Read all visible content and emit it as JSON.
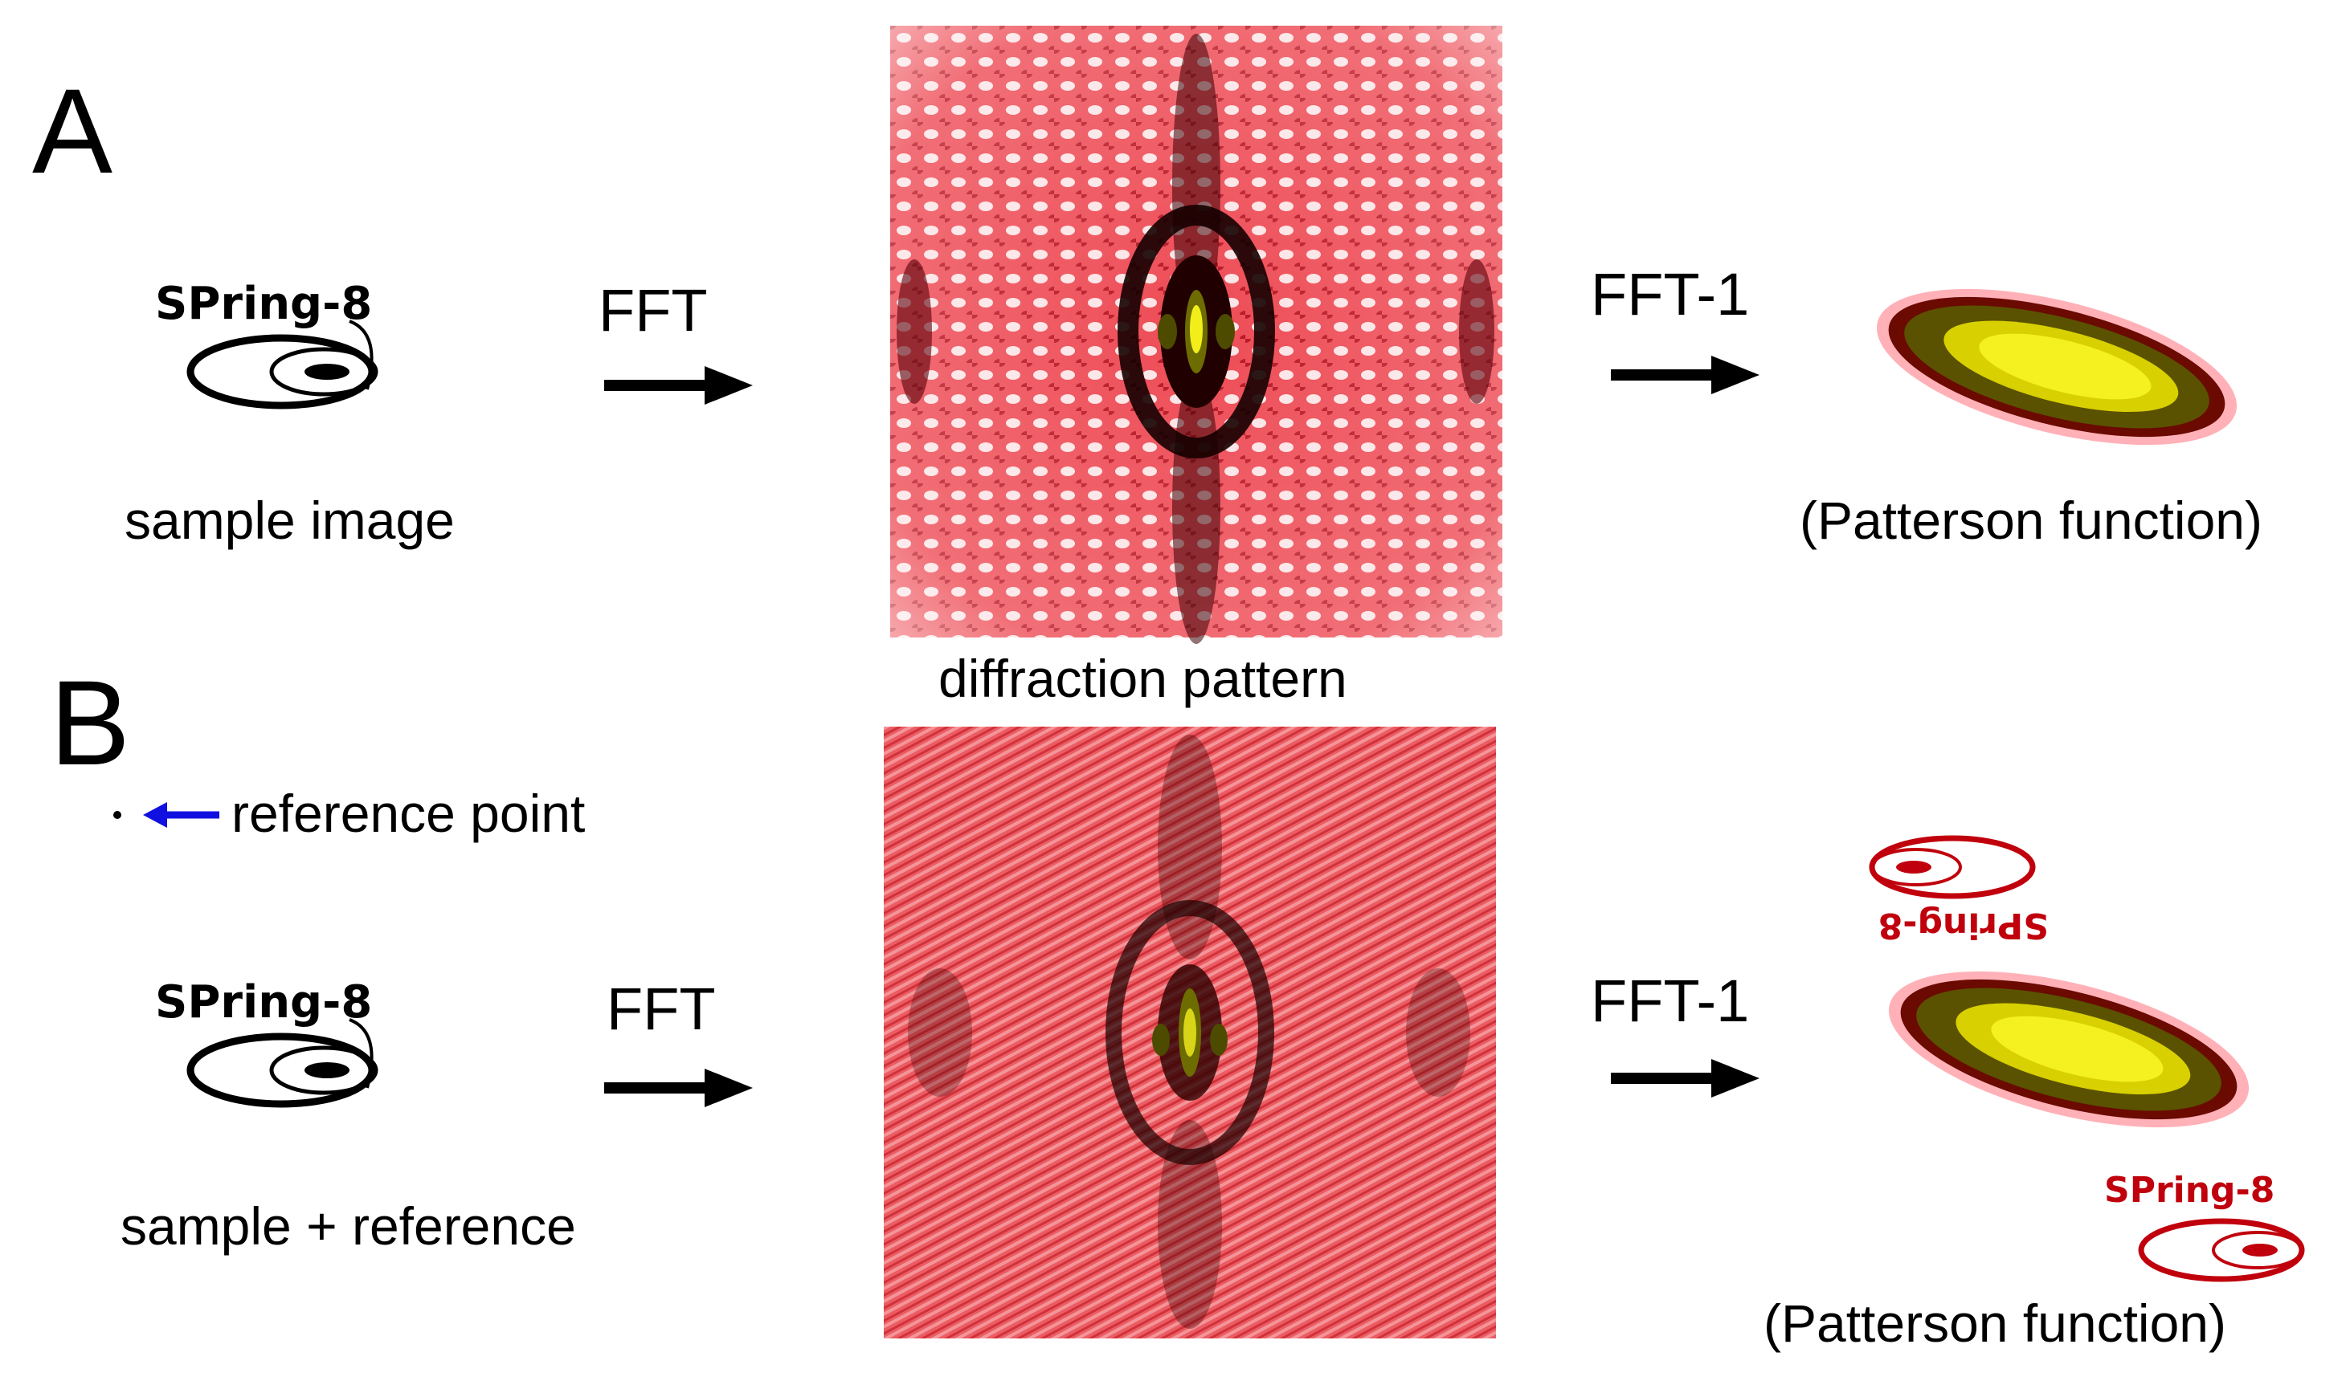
{
  "panels": {
    "a": {
      "letter": "A",
      "sample_logo_text": "SPring-8",
      "sample_caption": "sample image",
      "fft_label": "FFT",
      "diffraction_caption": "diffraction pattern",
      "ifft_label": "FFT-1",
      "result_caption": "(Patterson function)"
    },
    "b": {
      "letter": "B",
      "reference_label": "reference point",
      "sample_logo_text": "SPring-8",
      "sample_caption": "sample + reference",
      "fft_label": "FFT",
      "ifft_label": "FFT-1",
      "result_caption": "(Patterson function)"
    }
  },
  "colors": {
    "pattern_red": "#e0001b",
    "pattern_dark": "#2a0000",
    "center_yellow": "#f2ee1a",
    "reference_arrow": "#1010e0",
    "arrow_black": "#000000"
  }
}
